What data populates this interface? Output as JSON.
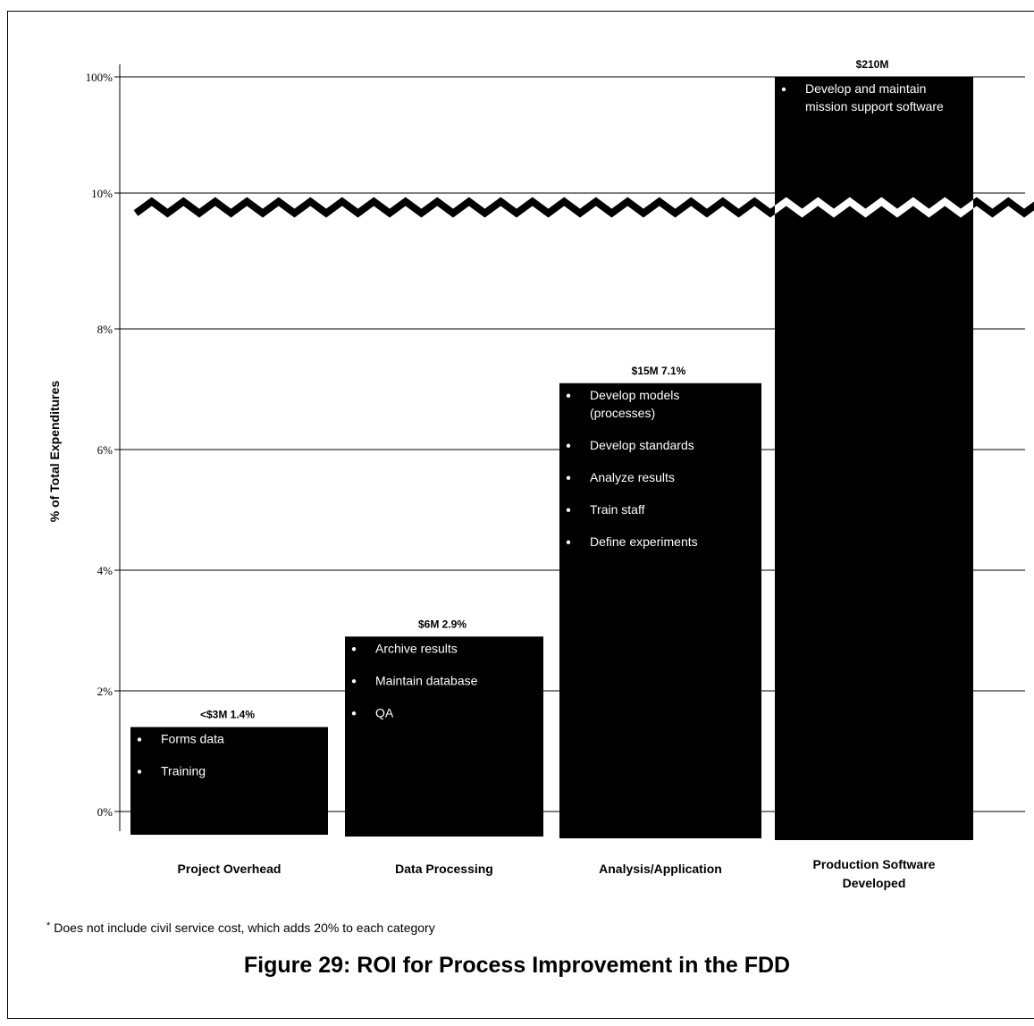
{
  "chart_data": {
    "type": "bar",
    "ylabel": "% of Total Expenditures",
    "y_ticks": [
      "0%",
      "2%",
      "4%",
      "6%",
      "8%",
      "10%",
      "100%"
    ],
    "axis_break": "between 10% and 100%",
    "grid": true,
    "categories": [
      "Project Overhead",
      "Data Processing",
      "Analysis/Application",
      "Production Software Developed"
    ],
    "category_lines": [
      [
        "Project Overhead"
      ],
      [
        "Data Processing"
      ],
      [
        "Analysis/Application"
      ],
      [
        "Production Software",
        "Developed"
      ]
    ],
    "values": [
      1.4,
      2.9,
      7.1,
      100
    ],
    "data_labels": [
      "<$3M 1.4%",
      "$6M 2.9%",
      "$15M 7.1%",
      "$210M"
    ],
    "bullets": [
      [
        [
          "Forms data"
        ],
        [
          "Training"
        ]
      ],
      [
        [
          "Archive results"
        ],
        [
          "Maintain database"
        ],
        [
          "QA"
        ]
      ],
      [
        [
          "Develop models",
          "(processes)"
        ],
        [
          "Develop standards"
        ],
        [
          "Analyze results"
        ],
        [
          "Train staff"
        ],
        [
          "Define experiments"
        ]
      ],
      [
        [
          "Develop and maintain",
          "mission support software"
        ]
      ]
    ],
    "bar_color": "#000000",
    "bullet_text_color": "#ffffff"
  },
  "footnote": {
    "marker": "*",
    "text": "Does not include civil service cost, which adds 20% to each category"
  },
  "caption": "Figure 29:  ROI for Process Improvement in the FDD"
}
